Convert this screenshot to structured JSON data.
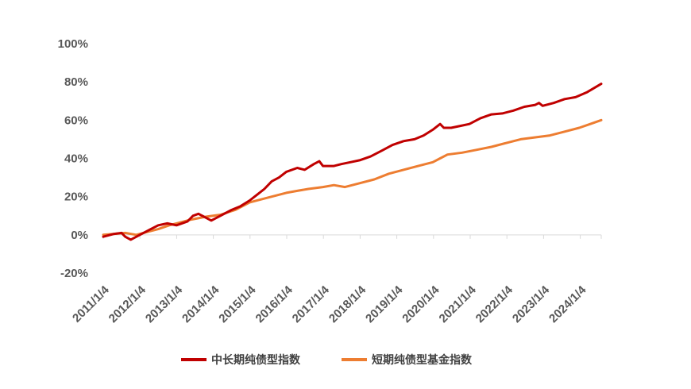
{
  "chart_data": {
    "type": "line",
    "title": "",
    "xlabel": "",
    "ylabel": "",
    "ylim": [
      -20,
      100
    ],
    "yticks": [
      "100%",
      "80%",
      "60%",
      "40%",
      "20%",
      "0%",
      "-20%"
    ],
    "ytick_values": [
      100,
      80,
      60,
      40,
      20,
      0,
      -20
    ],
    "x_tick_labels": [
      "2011/1/4",
      "2012/1/4",
      "2013/1/4",
      "2014/1/4",
      "2015/1/4",
      "2016/1/4",
      "2017/1/4",
      "2018/1/4",
      "2019/1/4",
      "2020/1/4",
      "2021/1/4",
      "2022/1/4",
      "2023/1/4",
      "2024/1/4"
    ],
    "xlim": [
      2011.0,
      2024.6
    ],
    "grid": false,
    "legend_position": "bottom",
    "colors": {
      "series1": "#C00000",
      "series2": "#ED7D31",
      "axis": "#D9D9D9"
    },
    "series": [
      {
        "name": "中长期纯债型指数",
        "x": [
          2011.0,
          2011.3,
          2011.5,
          2011.6,
          2011.75,
          2012.0,
          2012.3,
          2012.5,
          2012.75,
          2013.0,
          2013.3,
          2013.45,
          2013.6,
          2013.8,
          2013.95,
          2014.2,
          2014.5,
          2014.75,
          2015.0,
          2015.2,
          2015.4,
          2015.6,
          2015.8,
          2016.0,
          2016.3,
          2016.5,
          2016.75,
          2016.9,
          2017.0,
          2017.3,
          2017.5,
          2017.75,
          2018.0,
          2018.3,
          2018.6,
          2018.9,
          2019.2,
          2019.5,
          2019.75,
          2020.0,
          2020.2,
          2020.3,
          2020.5,
          2020.75,
          2021.0,
          2021.3,
          2021.6,
          2021.9,
          2022.2,
          2022.5,
          2022.8,
          2022.9,
          2023.0,
          2023.3,
          2023.6,
          2023.9,
          2024.2,
          2024.6
        ],
        "values": [
          -1,
          0.5,
          1,
          -1,
          -2.5,
          0,
          3,
          5,
          6,
          5,
          7,
          10,
          11,
          9,
          7.5,
          10,
          13,
          15,
          18,
          21,
          24,
          28,
          30,
          33,
          35,
          34,
          37,
          38.5,
          36,
          36,
          37,
          38,
          39,
          41,
          44,
          47,
          49,
          50,
          52,
          55,
          58,
          56,
          56,
          57,
          58,
          61,
          63,
          63.5,
          65,
          67,
          68,
          69,
          67.5,
          69,
          71,
          72,
          74.5,
          79
        ]
      },
      {
        "name": "短期纯债型基金指数",
        "x": [
          2011.0,
          2011.3,
          2011.6,
          2011.9,
          2012.2,
          2012.5,
          2012.8,
          2013.0,
          2013.4,
          2013.8,
          2014.2,
          2014.6,
          2015.0,
          2015.3,
          2015.6,
          2016.0,
          2016.3,
          2016.6,
          2017.0,
          2017.3,
          2017.6,
          2018.0,
          2018.4,
          2018.8,
          2019.2,
          2019.6,
          2020.0,
          2020.2,
          2020.4,
          2020.8,
          2021.2,
          2021.6,
          2022.0,
          2022.4,
          2022.8,
          2023.2,
          2023.6,
          2024.0,
          2024.3,
          2024.6
        ],
        "values": [
          0,
          0.5,
          1,
          0,
          1.5,
          3,
          5,
          6,
          8,
          9.5,
          10.5,
          13,
          17,
          18.5,
          20,
          22,
          23,
          24,
          25,
          26,
          25,
          27,
          29,
          32,
          34,
          36,
          38,
          40,
          42,
          43,
          44.5,
          46,
          48,
          50,
          51,
          52,
          54,
          56,
          58,
          60
        ]
      }
    ]
  }
}
